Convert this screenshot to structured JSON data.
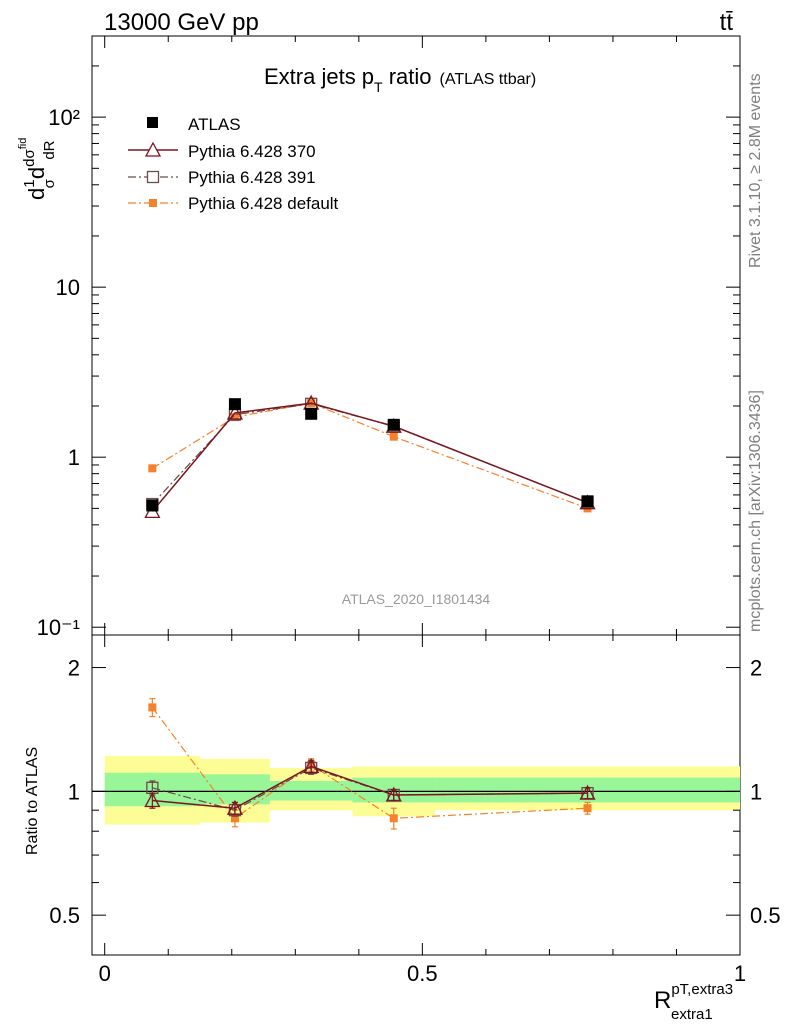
{
  "header": {
    "energy": "13000 GeV pp",
    "process": "tt̄"
  },
  "side_labels": {
    "rivet": "Rivet 3.1.10, ≥ 2.8M events",
    "mcplots": "mcplots.cern.ch [arXiv:1306.3436]"
  },
  "chart_data": {
    "type": "scatter",
    "title": "Extra jets p",
    "title_sub": "T",
    "title_rest": " ratio",
    "title_note": "(ATLAS ttbar)",
    "watermark": "ATLAS_2020_I1801434",
    "xlabel": "R",
    "xlabel_sup": "pT,extra3",
    "xlabel_sub": "extra1",
    "ylabel_main": "d",
    "ylabel_ratio": "Ratio to ATLAS",
    "xlim": [
      -0.02,
      1.0
    ],
    "main_ylim": [
      0.09,
      300
    ],
    "ratio_ylim": [
      0.4,
      2.4
    ],
    "x_ticks": [
      {
        "value": 0,
        "label": "0"
      },
      {
        "value": 0.5,
        "label": "0.5"
      },
      {
        "value": 1,
        "label": "1"
      }
    ],
    "main_y_ticks": [
      {
        "value": 0.1,
        "label": "10⁻¹"
      },
      {
        "value": 1,
        "label": "1"
      },
      {
        "value": 10,
        "label": "10"
      },
      {
        "value": 100,
        "label": "10²"
      }
    ],
    "ratio_y_ticks": [
      {
        "value": 0.5,
        "label": "0.5"
      },
      {
        "value": 1,
        "label": "1"
      },
      {
        "value": 2,
        "label": "2"
      }
    ],
    "bins": [
      {
        "lo": 0.0,
        "hi": 0.15,
        "band_inner": [
          0.92,
          1.11
        ],
        "band_outer": [
          0.83,
          1.22
        ]
      },
      {
        "lo": 0.15,
        "hi": 0.26,
        "band_inner": [
          0.93,
          1.1
        ],
        "band_outer": [
          0.84,
          1.2
        ]
      },
      {
        "lo": 0.26,
        "hi": 0.39,
        "band_inner": [
          0.95,
          1.06
        ],
        "band_outer": [
          0.9,
          1.14
        ]
      },
      {
        "lo": 0.39,
        "hi": 0.52,
        "band_inner": [
          0.94,
          1.08
        ],
        "band_outer": [
          0.87,
          1.15
        ]
      },
      {
        "lo": 0.52,
        "hi": 1.0,
        "band_inner": [
          0.94,
          1.08
        ],
        "band_outer": [
          0.9,
          1.15
        ]
      }
    ],
    "series": [
      {
        "name": "ATLAS",
        "color": "#000000",
        "marker": "square-filled",
        "line": "none",
        "x": [
          0.075,
          0.205,
          0.325,
          0.455,
          0.76
        ],
        "y": [
          0.52,
          2.05,
          1.8,
          1.55,
          0.55
        ],
        "ratio": null
      },
      {
        "name": "Pythia 6.428 370",
        "color": "#7a1520",
        "marker": "triangle-open",
        "line": "solid",
        "x": [
          0.075,
          0.205,
          0.325,
          0.455,
          0.76
        ],
        "y": [
          0.48,
          1.82,
          2.08,
          1.52,
          0.54
        ],
        "ratio": [
          0.95,
          0.91,
          1.15,
          0.98,
          0.99
        ],
        "ratio_err": [
          0.04,
          0.03,
          0.04,
          0.03,
          0.03
        ]
      },
      {
        "name": "Pythia 6.428 391",
        "color": "#6e4a4a",
        "marker": "square-open",
        "line": "dashdot",
        "x": [
          0.075,
          0.205,
          0.325,
          0.455,
          0.76
        ],
        "y": [
          0.53,
          1.78,
          2.06,
          1.52,
          0.54
        ],
        "ratio": [
          1.02,
          0.9,
          1.14,
          0.98,
          0.99
        ],
        "ratio_err": [
          0.04,
          0.03,
          0.04,
          0.03,
          0.03
        ]
      },
      {
        "name": "Pythia 6.428 default",
        "color": "#f5822a",
        "marker": "square-filled-small",
        "line": "dashdot",
        "x": [
          0.075,
          0.205,
          0.325,
          0.455,
          0.76
        ],
        "y": [
          0.86,
          1.72,
          2.08,
          1.32,
          0.5
        ],
        "ratio": [
          1.6,
          0.86,
          1.16,
          0.86,
          0.91
        ],
        "ratio_err": [
          0.08,
          0.04,
          0.04,
          0.05,
          0.03
        ]
      }
    ]
  }
}
